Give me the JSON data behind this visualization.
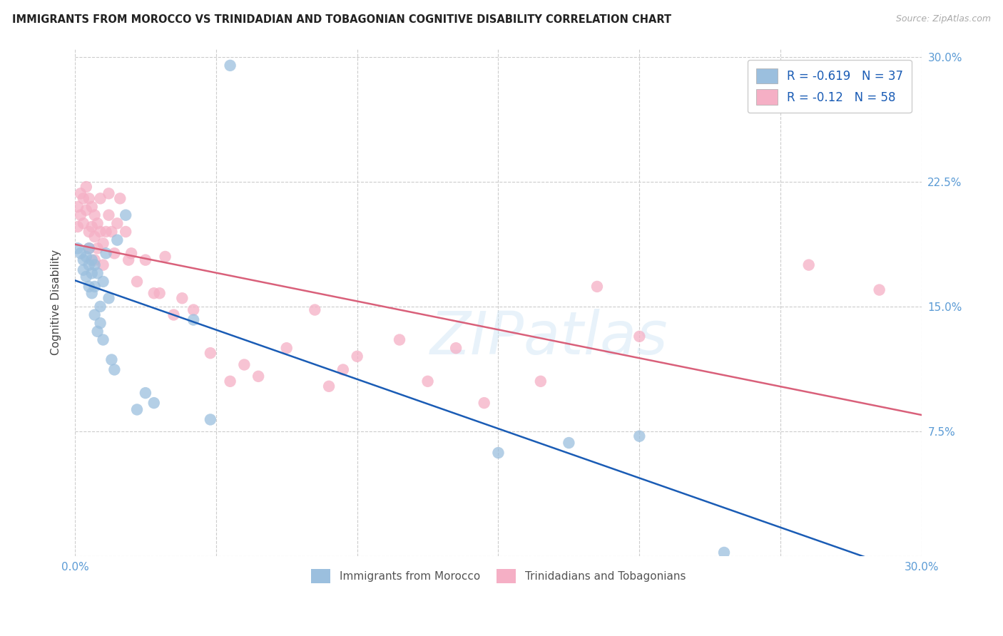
{
  "title": "IMMIGRANTS FROM MOROCCO VS TRINIDADIAN AND TOBAGONIAN COGNITIVE DISABILITY CORRELATION CHART",
  "source": "Source: ZipAtlas.com",
  "ylabel": "Cognitive Disability",
  "x_min": 0.0,
  "x_max": 0.3,
  "y_min": 0.0,
  "y_max": 0.305,
  "watermark": "ZIPatlas",
  "blue_color": "#9bbfde",
  "pink_color": "#f5afc5",
  "blue_line_color": "#1a5cb5",
  "pink_line_color": "#d9607a",
  "blue_r": -0.619,
  "blue_n": 37,
  "pink_r": -0.12,
  "pink_n": 58,
  "blue_x": [
    0.001,
    0.002,
    0.003,
    0.003,
    0.004,
    0.004,
    0.005,
    0.005,
    0.005,
    0.006,
    0.006,
    0.006,
    0.007,
    0.007,
    0.007,
    0.008,
    0.008,
    0.009,
    0.009,
    0.01,
    0.01,
    0.011,
    0.012,
    0.013,
    0.014,
    0.015,
    0.018,
    0.022,
    0.025,
    0.028,
    0.042,
    0.048,
    0.055,
    0.15,
    0.175,
    0.2,
    0.23
  ],
  "blue_y": [
    0.185,
    0.182,
    0.178,
    0.172,
    0.18,
    0.168,
    0.185,
    0.175,
    0.162,
    0.178,
    0.17,
    0.158,
    0.175,
    0.162,
    0.145,
    0.17,
    0.135,
    0.15,
    0.14,
    0.165,
    0.13,
    0.182,
    0.155,
    0.118,
    0.112,
    0.19,
    0.205,
    0.088,
    0.098,
    0.092,
    0.142,
    0.082,
    0.295,
    0.062,
    0.068,
    0.072,
    0.002
  ],
  "pink_x": [
    0.001,
    0.001,
    0.002,
    0.002,
    0.003,
    0.003,
    0.004,
    0.004,
    0.005,
    0.005,
    0.005,
    0.006,
    0.006,
    0.007,
    0.007,
    0.007,
    0.008,
    0.008,
    0.009,
    0.009,
    0.01,
    0.01,
    0.011,
    0.012,
    0.012,
    0.013,
    0.014,
    0.015,
    0.016,
    0.018,
    0.019,
    0.02,
    0.022,
    0.025,
    0.028,
    0.03,
    0.032,
    0.035,
    0.038,
    0.042,
    0.048,
    0.055,
    0.06,
    0.065,
    0.075,
    0.085,
    0.09,
    0.095,
    0.1,
    0.115,
    0.125,
    0.135,
    0.145,
    0.165,
    0.185,
    0.2,
    0.26,
    0.285
  ],
  "pink_y": [
    0.21,
    0.198,
    0.218,
    0.205,
    0.215,
    0.2,
    0.222,
    0.208,
    0.215,
    0.195,
    0.185,
    0.21,
    0.198,
    0.205,
    0.192,
    0.178,
    0.2,
    0.185,
    0.215,
    0.195,
    0.188,
    0.175,
    0.195,
    0.218,
    0.205,
    0.195,
    0.182,
    0.2,
    0.215,
    0.195,
    0.178,
    0.182,
    0.165,
    0.178,
    0.158,
    0.158,
    0.18,
    0.145,
    0.155,
    0.148,
    0.122,
    0.105,
    0.115,
    0.108,
    0.125,
    0.148,
    0.102,
    0.112,
    0.12,
    0.13,
    0.105,
    0.125,
    0.092,
    0.105,
    0.162,
    0.132,
    0.175,
    0.16
  ]
}
